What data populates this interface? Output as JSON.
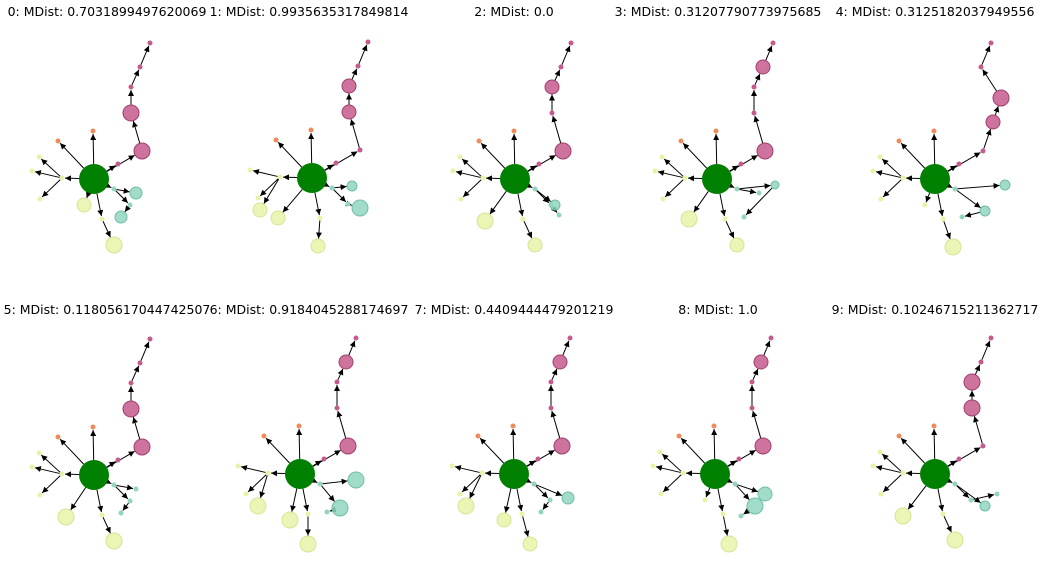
{
  "colors": {
    "hub": "#008000",
    "mauve": "#c55a8c",
    "orange": "#f08a5a",
    "yellow": "#e7f3a8",
    "teal": "#91d5bf",
    "edge": "#000000"
  },
  "panels": [
    {
      "title": "0: MDist: 0.7031899497620069"
    },
    {
      "title": "1: MDist: 0.9935635317849814"
    },
    {
      "title": "2: MDist: 0.0"
    },
    {
      "title": "3: MDist: 0.31207790773975685"
    },
    {
      "title": "4: MDist: 0.3125182037949556"
    },
    {
      "title": "5: MDist: 0.11805617044742507"
    },
    {
      "title": "6: MDist: 0.9184045288174697"
    },
    {
      "title": "7: MDist: 0.4409444479201219"
    },
    {
      "title": "8: MDist: 1.0"
    },
    {
      "title": "9: MDist: 0.10246715211362717"
    }
  ]
}
